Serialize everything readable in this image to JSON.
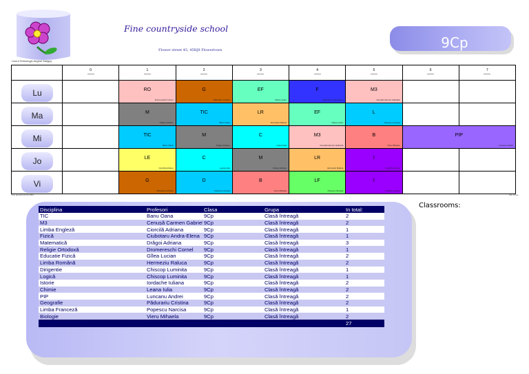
{
  "header": {
    "school_name": "Fine countryside school",
    "school_address": "Flower street 45, 45RJ8 Flowertown",
    "director": "Liceul Tehnologic Anghel Saligny",
    "class_name": "9Cp",
    "logo": "flower-logo"
  },
  "timetable": {
    "periods": [
      "0",
      "1",
      "2",
      "3",
      "4",
      "5",
      "6",
      "7"
    ],
    "days": [
      {
        "name": "Lu",
        "cells": [
          {
            "subject": "",
            "teacher": "",
            "color": ""
          },
          {
            "subject": "RO",
            "teacher": "Dromereschi Cornel",
            "color": "#ffc0c0"
          },
          {
            "subject": "G",
            "teacher": "Pădurariu Cristina",
            "color": "#cc6600"
          },
          {
            "subject": "EF",
            "teacher": "Gîlea Lucian",
            "color": "#66ffc0"
          },
          {
            "subject": "F",
            "teacher": "Ciubotaru Andra-Elena",
            "color": "#3333ff"
          },
          {
            "subject": "M3",
            "teacher": "Cenușă Carmen Gabriela",
            "color": "#ffc0c0"
          },
          {
            "subject": "",
            "teacher": "",
            "color": ""
          },
          {
            "subject": "",
            "teacher": "",
            "color": ""
          }
        ]
      },
      {
        "name": "Ma",
        "cells": [
          {
            "subject": "",
            "teacher": "",
            "color": ""
          },
          {
            "subject": "M",
            "teacher": "Drăgoi Adriana",
            "color": "#808080"
          },
          {
            "subject": "TIC",
            "teacher": "Banu Oana",
            "color": "#00ccff"
          },
          {
            "subject": "LR",
            "teacher": "Hermeziu Raluca",
            "color": "#ffc066"
          },
          {
            "subject": "EF",
            "teacher": "Gîlea Lucian",
            "color": "#66ffc0"
          },
          {
            "subject": "L",
            "teacher": "Chiscop Luminita",
            "color": "#00ccff"
          },
          {
            "subject": "",
            "teacher": "",
            "color": ""
          },
          {
            "subject": "",
            "teacher": "",
            "color": ""
          }
        ]
      },
      {
        "name": "Mi",
        "cells": [
          {
            "subject": "",
            "teacher": "",
            "color": ""
          },
          {
            "subject": "TIC",
            "teacher": "Banu Oana",
            "color": "#00ccff"
          },
          {
            "subject": "M",
            "teacher": "Drăgoi Adriana",
            "color": "#808080"
          },
          {
            "subject": "C",
            "teacher": "Leana Iulia",
            "color": "#00ffff"
          },
          {
            "subject": "M3",
            "teacher": "Cenușă Carmen Gabriela",
            "color": "#ffc0c0"
          },
          {
            "subject": "B",
            "teacher": "Vieru Mihaela",
            "color": "#ff8080"
          },
          {
            "subject": "PIP",
            "teacher": "Luncanu Andrei",
            "color": "#9966ff",
            "span": 2
          }
        ]
      },
      {
        "name": "Jo",
        "cells": [
          {
            "subject": "",
            "teacher": "",
            "color": ""
          },
          {
            "subject": "LE",
            "teacher": "Ciorcilă Adriana",
            "color": "#ffff66"
          },
          {
            "subject": "C",
            "teacher": "Leana Iulia",
            "color": "#00ffff"
          },
          {
            "subject": "M",
            "teacher": "Drăgoi Adriana",
            "color": "#808080"
          },
          {
            "subject": "LR",
            "teacher": "Hermeziu Raluca",
            "color": "#ffc066"
          },
          {
            "subject": "I",
            "teacher": "Iordache Iuliana",
            "color": "#9900ff"
          },
          {
            "subject": "",
            "teacher": "",
            "color": ""
          },
          {
            "subject": "",
            "teacher": "",
            "color": ""
          }
        ]
      },
      {
        "name": "Vi",
        "cells": [
          {
            "subject": "",
            "teacher": "",
            "color": ""
          },
          {
            "subject": "G",
            "teacher": "Pădurariu Cristina",
            "color": "#cc6600"
          },
          {
            "subject": "D",
            "teacher": "Chiscop Luminita",
            "color": "#00ccff"
          },
          {
            "subject": "B",
            "teacher": "Vieru Mihaela",
            "color": "#ff8080"
          },
          {
            "subject": "LF",
            "teacher": "Popescu Narcisa",
            "color": "#66ff66"
          },
          {
            "subject": "I",
            "teacher": "Iordache Iuliana",
            "color": "#9900ff"
          },
          {
            "subject": "",
            "teacher": "",
            "color": ""
          },
          {
            "subject": "",
            "teacher": "",
            "color": ""
          }
        ]
      }
    ],
    "footer_left": "Orar generat:16.01.2024",
    "footer_right": "aSc Orare"
  },
  "summary": {
    "headers": [
      "Disciplina",
      "Profesori",
      "Clasa",
      "Grupa",
      "In total:"
    ],
    "rows": [
      [
        "TIC",
        "Banu Oana",
        "9Cp",
        "Clasă întreagă",
        "2"
      ],
      [
        "M3",
        "Cenușă Carmen Gabriela",
        "9Cp",
        "Clasă întreagă",
        "2"
      ],
      [
        "Limba Engleză",
        "Ciorcilă Adriana",
        "9Cp",
        "Clasă întreagă",
        "1"
      ],
      [
        "Fizică",
        "Ciubotaru Andra-Elena",
        "9Cp",
        "Clasă întreagă",
        "1"
      ],
      [
        "Matematică",
        "Drăgoi Adriana",
        "9Cp",
        "Clasă întreagă",
        "3"
      ],
      [
        "Religie Ortodoxă",
        "Dromereschi Cornel",
        "9Cp",
        "Clasă întreagă",
        "1"
      ],
      [
        "Educatie Fizică",
        "Gîlea Lucian",
        "9Cp",
        "Clasă întreagă",
        "2"
      ],
      [
        "Limba Română",
        "Hermeziu Raluca",
        "9Cp",
        "Clasă întreagă",
        "2"
      ],
      [
        "Dirigentie",
        "Chiscop Luminita",
        "9Cp",
        "Clasă întreagă",
        "1"
      ],
      [
        "Logică",
        "Chiscop Luminita",
        "9Cp",
        "Clasă întreagă",
        "1"
      ],
      [
        "Istorie",
        "Iordache Iuliana",
        "9Cp",
        "Clasă întreagă",
        "2"
      ],
      [
        "Chimie",
        "Leana Iulia",
        "9Cp",
        "Clasă întreagă",
        "2"
      ],
      [
        "PIP",
        "Luncanu Andrei",
        "9Cp",
        "Clasă întreagă",
        "2"
      ],
      [
        "Geografie",
        "Pădurariu Cristina",
        "9Cp",
        "Clasă întreagă",
        "2"
      ],
      [
        "Limba Franceză",
        "Popescu Narcisa",
        "9Cp",
        "Clasă întreagă",
        "1"
      ],
      [
        "Biologie",
        "Vieru Mihaela",
        "9Cp",
        "Clasă întreagă",
        "2"
      ]
    ],
    "total": "27"
  },
  "classrooms": {
    "title": "Classrooms:"
  }
}
